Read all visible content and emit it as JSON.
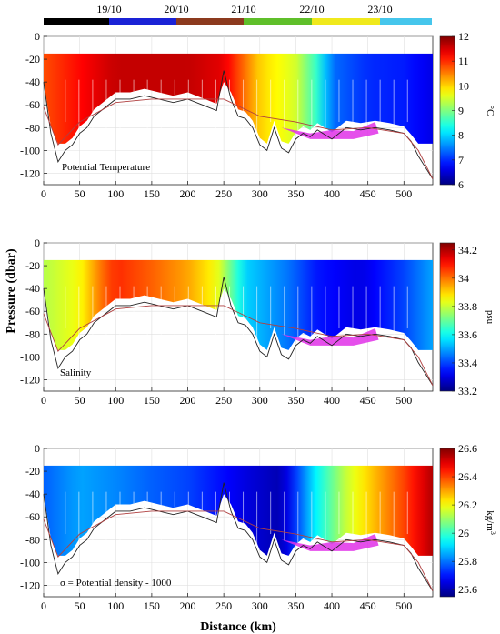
{
  "chart_data": {
    "type": "heatmap",
    "date_bar": {
      "labels": [
        "19/10",
        "20/10",
        "21/10",
        "22/10",
        "23/10"
      ],
      "segment_colors": [
        "#000000",
        "#1a22d6",
        "#8c3a1e",
        "#5fbf2a",
        "#f0e91c",
        "#46c6ec"
      ]
    },
    "xlabel": "Distance (km)",
    "ylabel": "Pressure (dbar)",
    "xlim": [
      0,
      540
    ],
    "x_ticks": [
      "0",
      "50",
      "100",
      "150",
      "200",
      "250",
      "300",
      "350",
      "400",
      "450",
      "500"
    ],
    "ylim": [
      -130,
      0
    ],
    "y_ticks": [
      "0",
      "-20",
      "-40",
      "-60",
      "-80",
      "-100",
      "-120"
    ],
    "panels": [
      {
        "label": "Potential Temperature",
        "unit": "°C",
        "clim": [
          6,
          12
        ],
        "colorbar_ticks": [
          "12",
          "11",
          "10",
          "9",
          "8",
          "7",
          "6"
        ],
        "color_profile": [
          [
            0,
            10.8
          ],
          [
            60,
            11.3
          ],
          [
            100,
            11.6
          ],
          [
            200,
            11.6
          ],
          [
            250,
            11.4
          ],
          [
            300,
            10.0
          ],
          [
            350,
            9.5
          ],
          [
            380,
            8.5
          ],
          [
            400,
            7.4
          ],
          [
            450,
            7.0
          ],
          [
            500,
            6.9
          ],
          [
            540,
            6.6
          ]
        ]
      },
      {
        "label": "Salinity",
        "unit": "psu",
        "clim": [
          33.2,
          34.25
        ],
        "colorbar_ticks": [
          "34.2",
          "34",
          "33.8",
          "33.6",
          "33.4",
          "33.2"
        ],
        "color_profile": [
          [
            0,
            33.78
          ],
          [
            50,
            33.85
          ],
          [
            80,
            34.0
          ],
          [
            100,
            34.08
          ],
          [
            150,
            34.02
          ],
          [
            200,
            33.95
          ],
          [
            240,
            33.85
          ],
          [
            280,
            33.55
          ],
          [
            340,
            33.45
          ],
          [
            380,
            33.35
          ],
          [
            440,
            33.3
          ],
          [
            500,
            33.4
          ],
          [
            540,
            33.5
          ]
        ]
      },
      {
        "label": "σ = Potential density - 1000",
        "unit": "kg/m3",
        "clim": [
          25.55,
          26.6
        ],
        "colorbar_ticks": [
          "26.6",
          "26.4",
          "26.2",
          "26",
          "25.8",
          "25.6"
        ],
        "color_profile": [
          [
            0,
            25.78
          ],
          [
            50,
            25.85
          ],
          [
            100,
            25.82
          ],
          [
            150,
            25.78
          ],
          [
            200,
            25.75
          ],
          [
            280,
            25.65
          ],
          [
            330,
            25.6
          ],
          [
            380,
            25.95
          ],
          [
            420,
            26.15
          ],
          [
            460,
            26.28
          ],
          [
            500,
            26.4
          ],
          [
            540,
            26.55
          ]
        ]
      }
    ],
    "bathymetry_km": [
      0,
      10,
      20,
      30,
      40,
      50,
      60,
      70,
      80,
      90,
      100,
      120,
      140,
      160,
      180,
      200,
      220,
      240,
      250,
      260,
      270,
      280,
      290,
      300,
      310,
      320,
      330,
      340,
      350,
      360,
      370,
      380,
      400,
      420,
      440,
      460,
      480,
      500,
      510,
      520,
      530,
      540
    ],
    "bathymetry_dbar": [
      -40,
      -85,
      -110,
      -100,
      -95,
      -85,
      -80,
      -70,
      -65,
      -60,
      -55,
      -55,
      -52,
      -55,
      -58,
      -55,
      -60,
      -65,
      -30,
      -55,
      -70,
      -72,
      -80,
      -95,
      -100,
      -80,
      -98,
      -102,
      -90,
      -85,
      -88,
      -82,
      -90,
      -80,
      -82,
      -80,
      -82,
      -85,
      -92,
      -105,
      -115,
      -125
    ],
    "mld_km": [
      0,
      20,
      50,
      100,
      150,
      200,
      250,
      300,
      350,
      400,
      450,
      500,
      520,
      540
    ],
    "mld_dbar": [
      -62,
      -95,
      -75,
      -58,
      -55,
      -55,
      -55,
      -70,
      -75,
      -82,
      -80,
      -85,
      -100,
      -125
    ]
  }
}
